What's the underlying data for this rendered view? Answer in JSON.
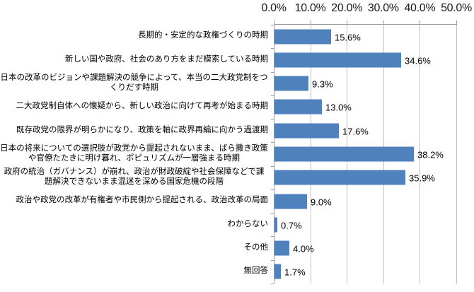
{
  "chart_data": {
    "type": "bar",
    "orientation": "horizontal",
    "title": "",
    "xlabel": "",
    "ylabel": "",
    "xlim": [
      0,
      50
    ],
    "grid": true,
    "axis_position": "top",
    "legend": "none",
    "bar_color": "#4f81bd",
    "gridline_color": "#bfbfbf",
    "axis_line_color": "#9b9b9b",
    "x_ticks": [
      "0.0%",
      "10.0%",
      "20.0%",
      "30.0%",
      "40.0%",
      "50.0%"
    ],
    "categories": [
      "長期的・安定的な政権づくりの時期",
      "新しい国や政府、社会のあり方をまだ模索している時期",
      "日本の改革のビジョンや課題解決の競争によって、本当の二大政党制をつくりだす時期",
      "二大政党制自体への懐疑から、新しい政治に向けて再考が始まる時期",
      "既存政党の限界が明らかになり、政策を軸に政界再編に向かう過渡期",
      "日本の将来についての選択肢が政党から提起されないまま、ばら撒き政策や官僚たたきに明け暮れ、ポピュリズムが一層強まる時期",
      "政府の統治（ガバナンス）が崩れ、政治が財政破綻や社会保障などで課題解決できないまま混迷を深める国家危機の段階",
      "政治や政党の改革が有権者や市民側から提起される、政治改革の局面",
      "わからない",
      "その他",
      "無回答"
    ],
    "values": [
      15.6,
      34.6,
      9.3,
      13.0,
      17.6,
      38.2,
      35.9,
      9.0,
      0.7,
      4.0,
      1.7
    ],
    "value_labels": [
      "15.6%",
      "34.6%",
      "9.3%",
      "13.0%",
      "17.6%",
      "38.2%",
      "35.9%",
      "9.0%",
      "0.7%",
      "4.0%",
      "1.7%"
    ]
  }
}
